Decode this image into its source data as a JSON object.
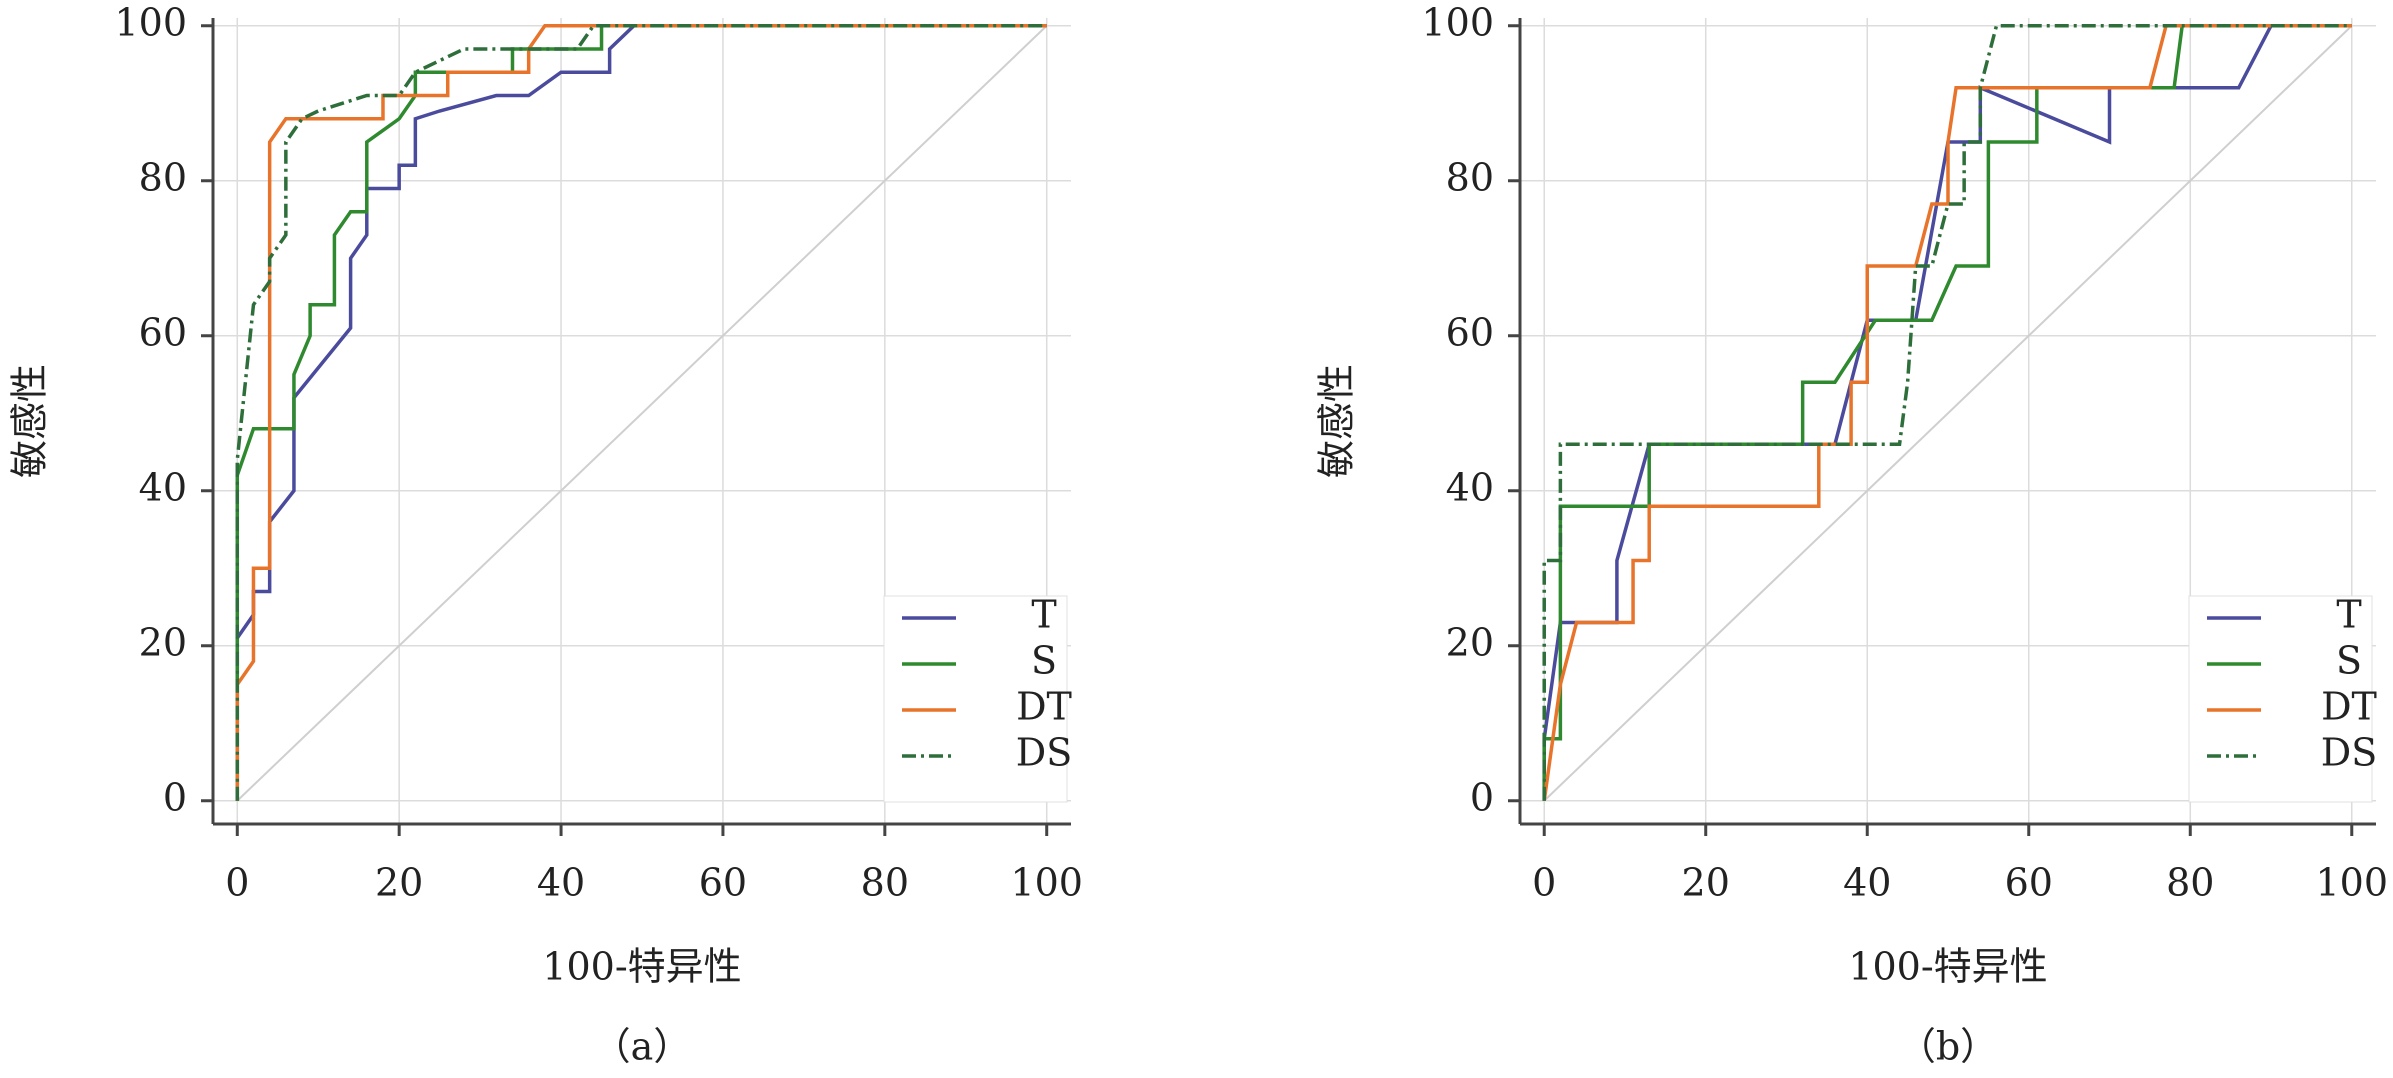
{
  "chart_data": [
    {
      "type": "line",
      "xlabel": "100-特异性",
      "ylabel": "敏感性",
      "caption": "（a）",
      "xlim": [
        -3,
        103
      ],
      "ylim": [
        -3,
        101
      ],
      "xticks": [
        0,
        20,
        40,
        60,
        80,
        100
      ],
      "yticks": [
        0,
        20,
        40,
        60,
        80,
        100
      ],
      "grid": true,
      "legend": "lower right",
      "reference_line": true,
      "series": [
        {
          "name": "T",
          "color": "#4b4b9e",
          "dash": "solid",
          "x": [
            0,
            0,
            2,
            2,
            4,
            4,
            7,
            7,
            14,
            14,
            16,
            16,
            20,
            20,
            22,
            22,
            25,
            32,
            36,
            40,
            46,
            46,
            49,
            100
          ],
          "values": [
            0,
            21,
            24,
            27,
            27,
            36,
            40,
            52,
            61,
            70,
            73,
            79,
            79,
            82,
            82,
            88,
            89,
            91,
            91,
            94,
            94,
            97,
            100,
            100
          ]
        },
        {
          "name": "S",
          "color": "#2f8a2f",
          "dash": "solid",
          "x": [
            0,
            0,
            2,
            7,
            7,
            9,
            9,
            12,
            12,
            14,
            16,
            16,
            20,
            22,
            22,
            34,
            34,
            45,
            45,
            100
          ],
          "values": [
            0,
            42,
            48,
            48,
            55,
            60,
            64,
            64,
            73,
            76,
            76,
            85,
            88,
            91,
            94,
            94,
            97,
            97,
            100,
            100
          ]
        },
        {
          "name": "DT",
          "color": "#e8742c",
          "dash": "solid",
          "x": [
            0,
            0,
            2,
            2,
            4,
            4,
            6,
            18,
            18,
            26,
            26,
            36,
            36,
            38,
            100
          ],
          "values": [
            0,
            15,
            18,
            30,
            30,
            85,
            88,
            88,
            91,
            91,
            94,
            94,
            97,
            100,
            100
          ]
        },
        {
          "name": "DS",
          "color": "#2d6e3a",
          "dash": "dashdot",
          "x": [
            0,
            0,
            2,
            4,
            4,
            6,
            6,
            8,
            10,
            16,
            20,
            22,
            28,
            42,
            44,
            100
          ],
          "values": [
            0,
            44,
            64,
            67,
            70,
            73,
            85,
            88,
            89,
            91,
            91,
            94,
            97,
            97,
            100,
            100
          ]
        }
      ]
    },
    {
      "type": "line",
      "xlabel": "100-特异性",
      "ylabel": "敏感性",
      "caption": "（b）",
      "xlim": [
        -3,
        103
      ],
      "ylim": [
        -3,
        101
      ],
      "xticks": [
        0,
        20,
        40,
        60,
        80,
        100
      ],
      "yticks": [
        0,
        20,
        40,
        60,
        80,
        100
      ],
      "grid": true,
      "legend": "lower right",
      "reference_line": true,
      "series": [
        {
          "name": "T",
          "color": "#4b4b9e",
          "dash": "solid",
          "x": [
            0,
            0,
            2,
            9,
            9,
            13,
            36,
            38,
            40,
            46,
            50,
            54,
            54,
            70,
            70,
            86,
            90,
            100
          ],
          "values": [
            0,
            8,
            23,
            23,
            31,
            46,
            46,
            54,
            62,
            62,
            85,
            85,
            92,
            85,
            92,
            92,
            100,
            100
          ]
        },
        {
          "name": "S",
          "color": "#2f8a2f",
          "dash": "solid",
          "x": [
            0,
            0,
            2,
            2,
            13,
            13,
            32,
            32,
            36,
            41,
            48,
            51,
            55,
            55,
            61,
            61,
            78,
            79,
            100
          ],
          "values": [
            0,
            8,
            8,
            38,
            38,
            46,
            46,
            54,
            54,
            62,
            62,
            69,
            69,
            85,
            85,
            92,
            92,
            100,
            100
          ]
        },
        {
          "name": "DT",
          "color": "#e8742c",
          "dash": "solid",
          "x": [
            0,
            2,
            4,
            11,
            11,
            13,
            13,
            34,
            34,
            38,
            38,
            40,
            40,
            46,
            48,
            50,
            50,
            51,
            75,
            77,
            100
          ],
          "values": [
            0,
            15,
            23,
            23,
            31,
            31,
            38,
            38,
            46,
            46,
            54,
            54,
            69,
            69,
            77,
            77,
            85,
            92,
            92,
            100,
            100
          ]
        },
        {
          "name": "DS",
          "color": "#2d6e3a",
          "dash": "dashdot",
          "x": [
            0,
            0,
            2,
            2,
            44,
            45,
            46,
            48,
            50,
            52,
            52,
            54,
            54,
            56,
            100
          ],
          "values": [
            0,
            31,
            31,
            46,
            46,
            54,
            69,
            69,
            77,
            77,
            85,
            85,
            92,
            100,
            100
          ]
        }
      ]
    }
  ]
}
